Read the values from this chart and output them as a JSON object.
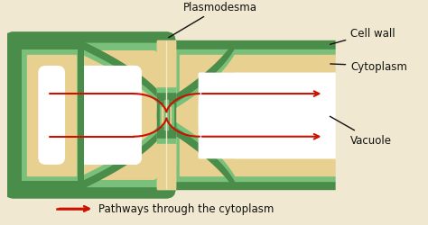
{
  "bg_color": "#f0e8d0",
  "cell_wall_dark": "#4a8c4a",
  "cell_wall_light": "#7abf7a",
  "cytoplasm_color": "#e8d090",
  "vacuole_color": "#ffffff",
  "arrow_color": "#cc1100",
  "label_color": "#111111",
  "labels": {
    "plasmodesma": "Plasmodesma",
    "cell_wall": "Cell wall",
    "cytoplasm": "Cytoplasm",
    "vacuole": "Vacuole",
    "legend": "Pathways through the cytoplasm"
  },
  "figsize": [
    4.74,
    2.51
  ],
  "dpi": 100
}
